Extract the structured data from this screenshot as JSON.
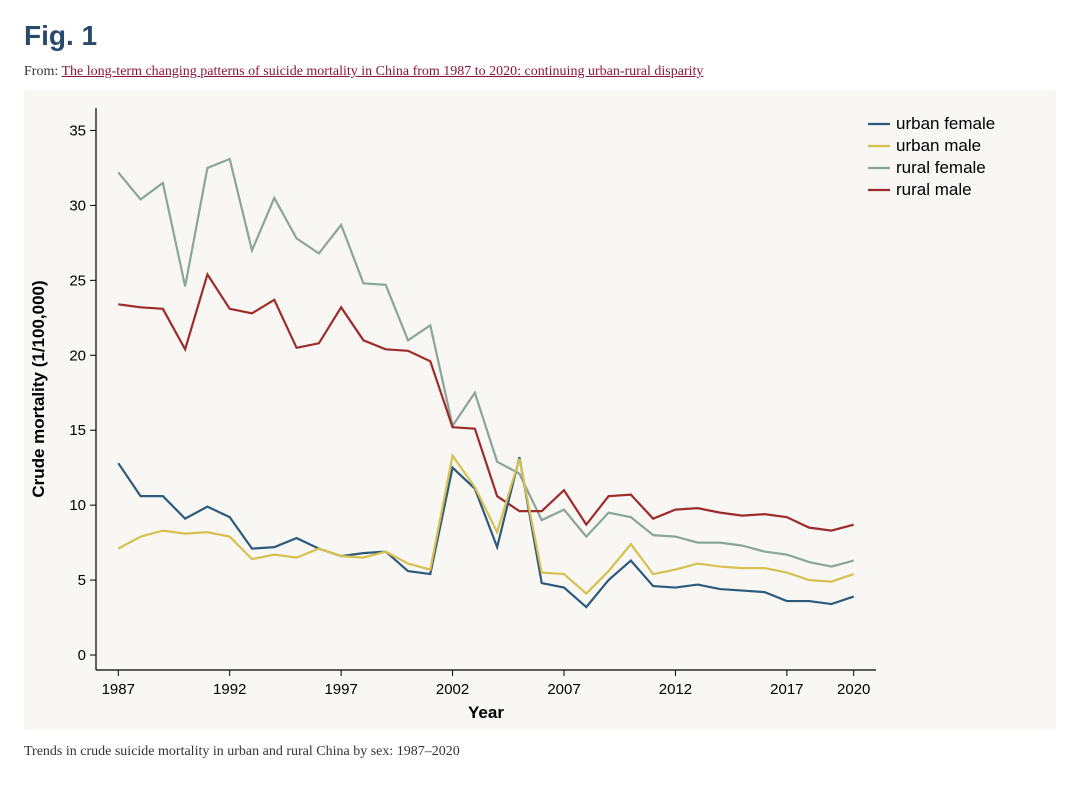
{
  "figure_label": "Fig. 1",
  "from_prefix": "From: ",
  "source_link_text": "The long-term changing patterns of suicide mortality in China from 1987 to 2020: continuing urban-rural disparity",
  "caption": "Trends in crude suicide mortality in urban and rural China by sex: 1987–2020",
  "chart": {
    "type": "line",
    "background_color": "#f8f7f3",
    "axis_color": "#000000",
    "x": {
      "label": "Year",
      "min": 1986,
      "max": 2021,
      "ticks": [
        1987,
        1992,
        1997,
        2002,
        2007,
        2012,
        2017,
        2020
      ]
    },
    "y": {
      "label": "Crude mortality (1/100,000)",
      "min": -1,
      "max": 36.5,
      "ticks": [
        0,
        5,
        10,
        15,
        20,
        25,
        30,
        35
      ]
    },
    "label_fontsize": 17,
    "tick_fontsize": 15,
    "line_width": 2.2,
    "legend": {
      "position": "top-right",
      "items": [
        {
          "label": "urban female",
          "color": "#2c5a7d"
        },
        {
          "label": "urban male",
          "color": "#d7c050"
        },
        {
          "label": "rural female",
          "color": "#8aa59a"
        },
        {
          "label": "rural male",
          "color": "#9e2b2b"
        }
      ]
    },
    "years": [
      1987,
      1988,
      1989,
      1990,
      1991,
      1992,
      1993,
      1994,
      1995,
      1996,
      1997,
      1998,
      1999,
      2000,
      2001,
      2002,
      2003,
      2004,
      2005,
      2006,
      2007,
      2008,
      2009,
      2010,
      2011,
      2012,
      2013,
      2014,
      2015,
      2016,
      2017,
      2018,
      2019,
      2020
    ],
    "series": [
      {
        "name": "rural female",
        "color": "#8aa59a",
        "values": [
          32.2,
          30.4,
          31.5,
          24.6,
          32.5,
          33.1,
          27.0,
          30.5,
          27.8,
          26.8,
          28.7,
          24.8,
          24.7,
          21.0,
          22.0,
          15.3,
          17.5,
          12.9,
          12.1,
          9.0,
          9.7,
          7.9,
          9.5,
          9.2,
          8.0,
          7.9,
          7.5,
          7.5,
          7.3,
          6.9,
          6.7,
          6.2,
          5.9,
          6.3
        ]
      },
      {
        "name": "rural male",
        "color": "#9e2b2b",
        "values": [
          23.4,
          23.2,
          23.1,
          20.4,
          25.4,
          23.1,
          22.8,
          23.7,
          20.5,
          20.8,
          23.2,
          21.0,
          20.4,
          20.3,
          19.6,
          15.2,
          15.1,
          10.6,
          9.6,
          9.6,
          11.0,
          8.7,
          10.6,
          10.7,
          9.1,
          9.7,
          9.8,
          9.5,
          9.3,
          9.4,
          9.2,
          8.5,
          8.3,
          8.7
        ]
      },
      {
        "name": "urban female",
        "color": "#2c5a7d",
        "values": [
          12.8,
          10.6,
          10.6,
          9.1,
          9.9,
          9.2,
          7.1,
          7.2,
          7.8,
          7.1,
          6.6,
          6.8,
          6.9,
          5.6,
          5.4,
          12.5,
          11.1,
          7.2,
          13.2,
          4.8,
          4.5,
          3.2,
          5.0,
          6.3,
          4.6,
          4.5,
          4.7,
          4.4,
          4.3,
          4.2,
          3.6,
          3.6,
          3.4,
          3.9
        ]
      },
      {
        "name": "urban male",
        "color": "#d7c050",
        "values": [
          7.1,
          7.9,
          8.3,
          8.1,
          8.2,
          7.9,
          6.4,
          6.7,
          6.5,
          7.1,
          6.6,
          6.5,
          6.9,
          6.1,
          5.7,
          13.3,
          11.2,
          8.2,
          13.1,
          5.5,
          5.4,
          4.1,
          5.6,
          7.4,
          5.4,
          5.7,
          6.1,
          5.9,
          5.8,
          5.8,
          5.5,
          5.0,
          4.9,
          5.4
        ]
      }
    ]
  }
}
